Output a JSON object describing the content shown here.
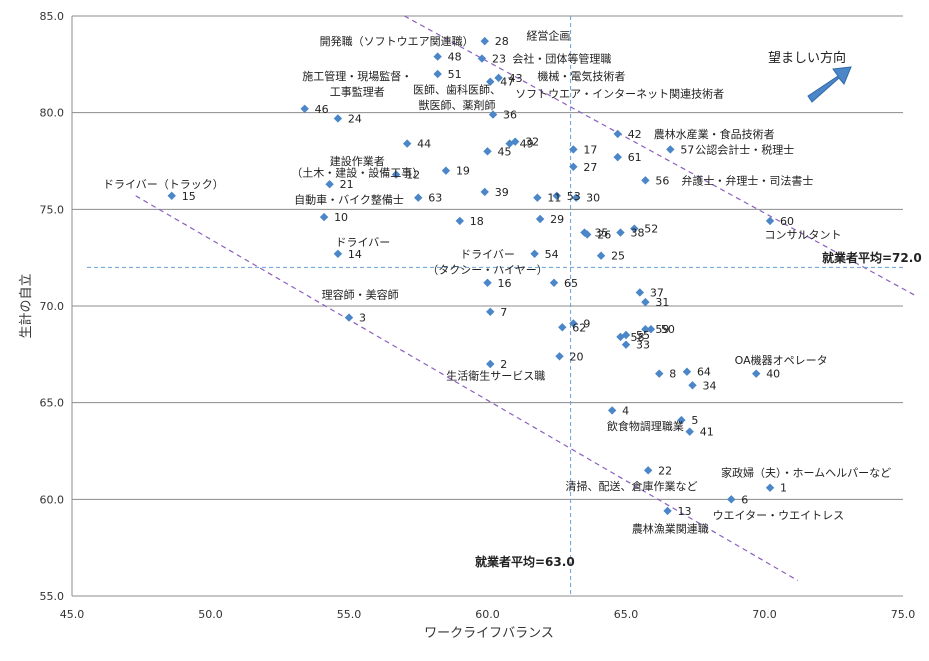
{
  "chart_data": {
    "type": "scatter",
    "xlabel": "ワークライフバランス",
    "ylabel": "生計の自立",
    "xlim": [
      45.0,
      75.0
    ],
    "ylim": [
      55.0,
      85.0
    ],
    "xticks": [
      "45.0",
      "50.0",
      "55.0",
      "60.0",
      "65.0",
      "70.0",
      "75.0"
    ],
    "yticks": [
      "55.0",
      "60.0",
      "65.0",
      "70.0",
      "75.0",
      "80.0",
      "85.0"
    ],
    "grid": "horizontal",
    "marker_color": "#4a86c8",
    "averages": {
      "x": 63.0,
      "y": 72.0,
      "x_label": "就業者平均=63.0",
      "y_label": "就業者平均=72.0"
    },
    "direction_label": "望ましい方向",
    "points": [
      {
        "id": "1",
        "x": 70.2,
        "y": 60.6
      },
      {
        "id": "2",
        "x": 60.1,
        "y": 67.0
      },
      {
        "id": "3",
        "x": 55.0,
        "y": 69.4
      },
      {
        "id": "4",
        "x": 64.5,
        "y": 64.6
      },
      {
        "id": "5",
        "x": 67.0,
        "y": 64.1
      },
      {
        "id": "6",
        "x": 68.8,
        "y": 60.0
      },
      {
        "id": "7",
        "x": 60.1,
        "y": 69.7
      },
      {
        "id": "8",
        "x": 66.2,
        "y": 66.5
      },
      {
        "id": "9",
        "x": 63.1,
        "y": 69.1
      },
      {
        "id": "10",
        "x": 54.1,
        "y": 74.6
      },
      {
        "id": "11",
        "x": 61.8,
        "y": 75.6
      },
      {
        "id": "12",
        "x": 56.7,
        "y": 76.8
      },
      {
        "id": "13",
        "x": 66.5,
        "y": 59.4
      },
      {
        "id": "14",
        "x": 54.6,
        "y": 72.7
      },
      {
        "id": "15",
        "x": 48.6,
        "y": 75.7
      },
      {
        "id": "16",
        "x": 60.0,
        "y": 71.2
      },
      {
        "id": "17",
        "x": 63.1,
        "y": 78.1
      },
      {
        "id": "18",
        "x": 59.0,
        "y": 74.4
      },
      {
        "id": "19",
        "x": 58.5,
        "y": 77.0
      },
      {
        "id": "20",
        "x": 62.6,
        "y": 67.4
      },
      {
        "id": "21",
        "x": 54.3,
        "y": 76.3
      },
      {
        "id": "22",
        "x": 65.8,
        "y": 61.5
      },
      {
        "id": "23",
        "x": 59.8,
        "y": 82.8
      },
      {
        "id": "24",
        "x": 54.6,
        "y": 79.7
      },
      {
        "id": "25",
        "x": 64.1,
        "y": 72.6
      },
      {
        "id": "26",
        "x": 63.6,
        "y": 73.7
      },
      {
        "id": "27",
        "x": 63.1,
        "y": 77.2
      },
      {
        "id": "28",
        "x": 59.9,
        "y": 83.7
      },
      {
        "id": "29",
        "x": 61.9,
        "y": 74.5
      },
      {
        "id": "30",
        "x": 63.2,
        "y": 75.6
      },
      {
        "id": "31",
        "x": 65.7,
        "y": 70.2
      },
      {
        "id": "32",
        "x": 61.0,
        "y": 78.5
      },
      {
        "id": "33",
        "x": 65.0,
        "y": 68.0
      },
      {
        "id": "34",
        "x": 67.4,
        "y": 65.9
      },
      {
        "id": "35",
        "x": 63.5,
        "y": 73.8
      },
      {
        "id": "36",
        "x": 60.2,
        "y": 79.9
      },
      {
        "id": "37",
        "x": 65.5,
        "y": 70.7
      },
      {
        "id": "38",
        "x": 64.8,
        "y": 73.8
      },
      {
        "id": "39",
        "x": 59.9,
        "y": 75.9
      },
      {
        "id": "40",
        "x": 69.7,
        "y": 66.5
      },
      {
        "id": "41",
        "x": 67.3,
        "y": 63.5
      },
      {
        "id": "42",
        "x": 64.7,
        "y": 78.9
      },
      {
        "id": "43",
        "x": 60.4,
        "y": 81.8
      },
      {
        "id": "44",
        "x": 57.1,
        "y": 78.4
      },
      {
        "id": "45",
        "x": 60.0,
        "y": 78.0
      },
      {
        "id": "46",
        "x": 53.4,
        "y": 80.2
      },
      {
        "id": "47",
        "x": 60.1,
        "y": 81.6
      },
      {
        "id": "48",
        "x": 58.2,
        "y": 82.9
      },
      {
        "id": "49",
        "x": 60.8,
        "y": 78.4
      },
      {
        "id": "50",
        "x": 65.9,
        "y": 68.8
      },
      {
        "id": "51",
        "x": 58.2,
        "y": 82.0
      },
      {
        "id": "52",
        "x": 65.3,
        "y": 74.0
      },
      {
        "id": "53",
        "x": 62.5,
        "y": 75.7
      },
      {
        "id": "54",
        "x": 61.7,
        "y": 72.7
      },
      {
        "id": "55",
        "x": 65.0,
        "y": 68.5
      },
      {
        "id": "56",
        "x": 65.7,
        "y": 76.5
      },
      {
        "id": "57",
        "x": 66.6,
        "y": 78.1
      },
      {
        "id": "58",
        "x": 64.8,
        "y": 68.4
      },
      {
        "id": "59",
        "x": 65.7,
        "y": 68.8
      },
      {
        "id": "60",
        "x": 70.2,
        "y": 74.4
      },
      {
        "id": "61",
        "x": 64.7,
        "y": 77.7
      },
      {
        "id": "62",
        "x": 62.7,
        "y": 68.9
      },
      {
        "id": "63",
        "x": 57.5,
        "y": 75.6
      },
      {
        "id": "64",
        "x": 67.2,
        "y": 66.6
      },
      {
        "id": "65",
        "x": 62.4,
        "y": 71.2
      }
    ],
    "category_labels": [
      {
        "id": "c1",
        "text": "開発職（ソフトウエア関連職）",
        "anchor": "end",
        "x": 59.5,
        "y": 83.7
      },
      {
        "id": "c2",
        "text": "経営企画",
        "anchor": "middle",
        "x": 62.2,
        "y": 84.0
      },
      {
        "id": "c3",
        "text": "会社・団体等管理職",
        "anchor": "start",
        "x": 60.9,
        "y": 82.8
      },
      {
        "id": "c4",
        "text": "機械・電気技術者",
        "anchor": "start",
        "x": 61.8,
        "y": 81.9
      },
      {
        "id": "c5",
        "text": "施工管理・現場監督・",
        "anchor": "middle",
        "x": 55.3,
        "y": 81.9
      },
      {
        "id": "c6",
        "text": "工事監理者",
        "anchor": "middle",
        "x": 55.3,
        "y": 81.1
      },
      {
        "id": "c7",
        "text": "医師、歯科医師、",
        "anchor": "middle",
        "x": 58.9,
        "y": 81.2
      },
      {
        "id": "c8",
        "text": "獣医師、薬剤師",
        "anchor": "middle",
        "x": 58.9,
        "y": 80.4
      },
      {
        "id": "c9",
        "text": "ソフトウエア・インターネット関連技術者",
        "anchor": "start",
        "x": 61.0,
        "y": 81.0
      },
      {
        "id": "c10",
        "text": "農林水産業・食品技術者",
        "anchor": "start",
        "x": 66.0,
        "y": 78.9
      },
      {
        "id": "c11",
        "text": "公認会計士・税理士",
        "anchor": "start",
        "x": 67.5,
        "y": 78.1
      },
      {
        "id": "c12",
        "text": "建設作業者",
        "anchor": "middle",
        "x": 55.3,
        "y": 77.5
      },
      {
        "id": "c13",
        "text": "（土木・建設・設備工事）",
        "anchor": "middle",
        "x": 55.3,
        "y": 76.9
      },
      {
        "id": "c14",
        "text": "弁護士・弁理士・司法書士",
        "anchor": "start",
        "x": 67.0,
        "y": 76.5
      },
      {
        "id": "c15",
        "text": "ドライバー（トラック）",
        "anchor": "middle",
        "x": 48.3,
        "y": 76.3
      },
      {
        "id": "c16",
        "text": "自動車・バイク整備士",
        "anchor": "middle",
        "x": 55.0,
        "y": 75.5
      },
      {
        "id": "c17",
        "text": "コンサルタント",
        "anchor": "start",
        "x": 70.0,
        "y": 73.7
      },
      {
        "id": "c18",
        "text": "ドライバー",
        "anchor": "middle",
        "x": 55.5,
        "y": 73.3
      },
      {
        "id": "c19",
        "text": "ドライバー",
        "anchor": "middle",
        "x": 60.0,
        "y": 72.7
      },
      {
        "id": "c20",
        "text": "（タクシー・ハイヤー）",
        "anchor": "middle",
        "x": 60.0,
        "y": 71.9
      },
      {
        "id": "c21",
        "text": "理容師・美容師",
        "anchor": "middle",
        "x": 55.4,
        "y": 70.6
      },
      {
        "id": "c22",
        "text": "OA機器オペレータ",
        "anchor": "middle",
        "x": 70.6,
        "y": 67.2
      },
      {
        "id": "c23",
        "text": "生活衛生サービス職",
        "anchor": "middle",
        "x": 60.3,
        "y": 66.4
      },
      {
        "id": "c24",
        "text": "飲食物調理職業",
        "anchor": "middle",
        "x": 65.7,
        "y": 63.8
      },
      {
        "id": "c25",
        "text": "家政婦（夫）・ホームヘルパーなど",
        "anchor": "middle",
        "x": 71.5,
        "y": 61.4
      },
      {
        "id": "c26",
        "text": "清掃、配送、倉庫作業など",
        "anchor": "middle",
        "x": 65.2,
        "y": 60.7
      },
      {
        "id": "c27",
        "text": "ウエイター・ウエイトレス",
        "anchor": "middle",
        "x": 70.5,
        "y": 59.2
      },
      {
        "id": "c28",
        "text": "農林漁業関連職",
        "anchor": "middle",
        "x": 66.6,
        "y": 58.5
      }
    ]
  }
}
